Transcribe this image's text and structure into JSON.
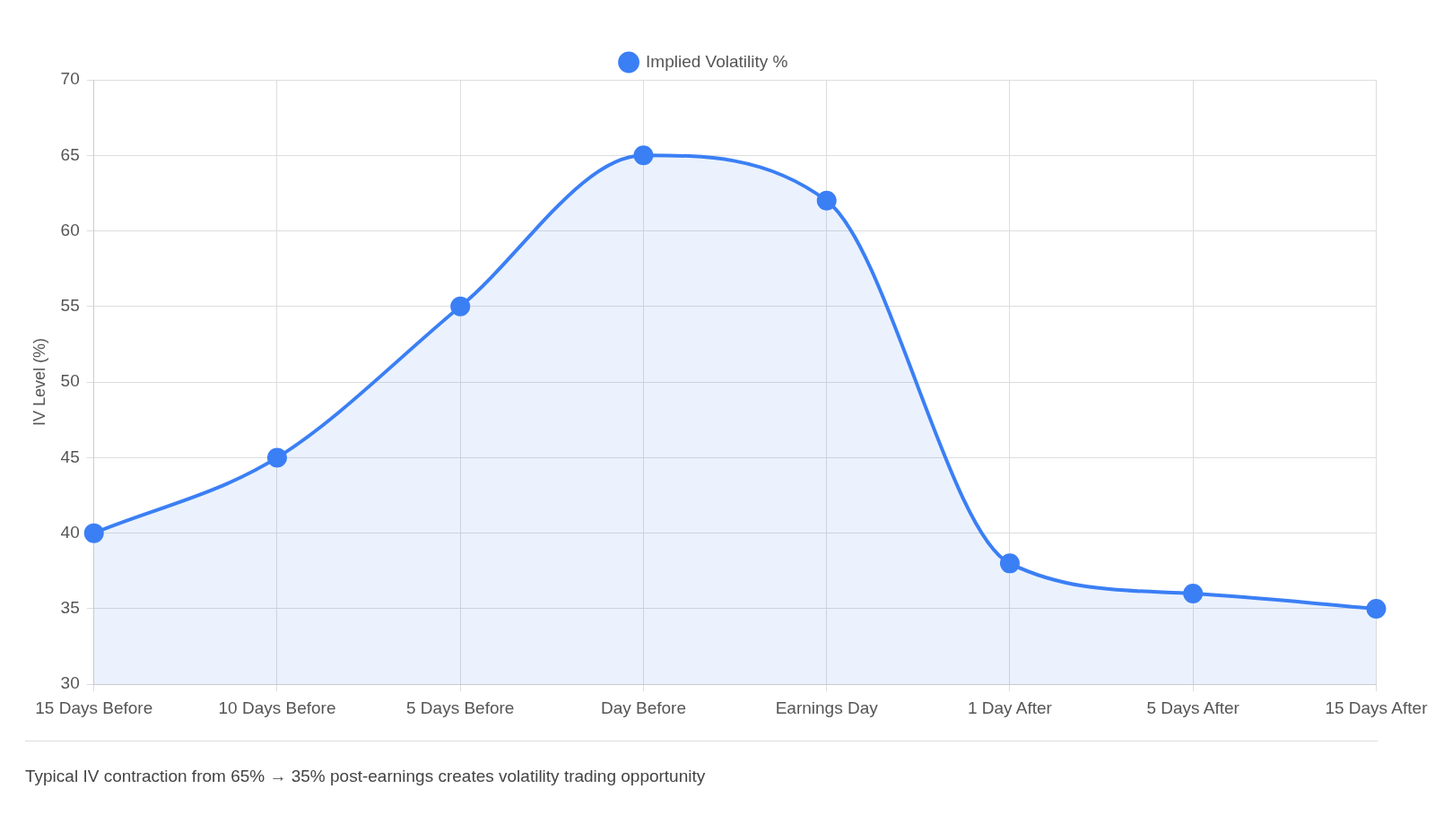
{
  "chart_data": {
    "type": "area",
    "ylabel": "IV Level (%)",
    "categories": [
      "15 Days Before",
      "10 Days Before",
      "5 Days Before",
      "Day Before",
      "Earnings Day",
      "1 Day After",
      "5 Days After",
      "15 Days After"
    ],
    "series": [
      {
        "name": "Implied Volatility %",
        "color": "#3b7ff5",
        "values": [
          40,
          45,
          55,
          65,
          62,
          38,
          36,
          35
        ]
      }
    ],
    "ylim": [
      30,
      70
    ],
    "yticks": [
      30,
      35,
      40,
      45,
      50,
      55,
      60,
      65,
      70
    ],
    "grid": true,
    "legend": "top",
    "marker": "circle",
    "annotations": [
      "Typical IV contraction from 65% → 35% post-earnings creates volatility trading opportunity"
    ]
  }
}
